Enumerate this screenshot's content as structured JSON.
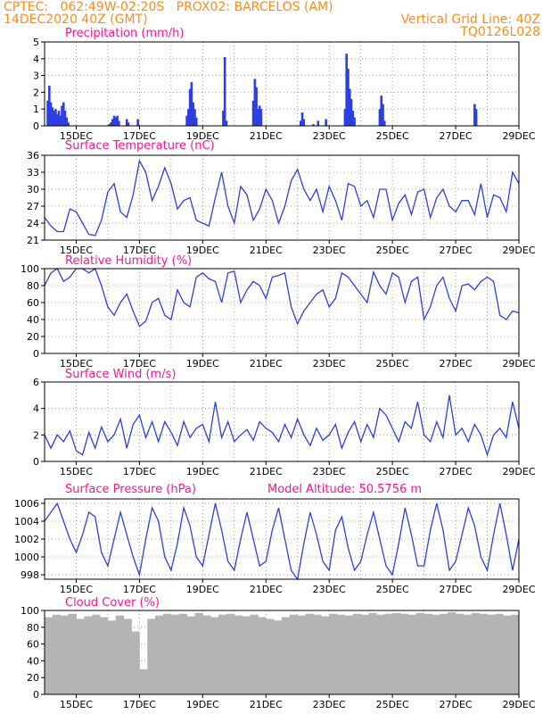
{
  "header": {
    "line1_left": "CPTEC:   062:49W-02:20S   PROX02: BARCELOS (AM)",
    "line2_left": "14DEC2020 40Z (GMT)",
    "line2_right": "Vertical Grid Line: 40Z",
    "line3_right": "TQ0126L028"
  },
  "colors": {
    "header": "#ff8c1a",
    "panel_title": "#ff1493",
    "line": "#2d3fe0",
    "bar": "#2d3fe0",
    "cloud": "#b4b4b4",
    "grid": "#8c8c8c"
  },
  "x_axis": {
    "start_day": 14,
    "end_day": 29,
    "tick_labels": [
      "15DEC",
      "17DEC",
      "19DEC",
      "21DEC",
      "23DEC",
      "25DEC",
      "27DEC",
      "29DEC"
    ],
    "tick_days": [
      15,
      17,
      19,
      21,
      23,
      25,
      27,
      29
    ],
    "vertical_grid_every_day": true
  },
  "chart_data": [
    {
      "type": "bar",
      "title": "Precipitation (mm/h)",
      "ylim": [
        0,
        5
      ],
      "yticks": [
        0,
        1,
        2,
        3,
        4,
        5
      ],
      "x_unit": "day of December 2020",
      "bars": [
        [
          14.1,
          1.5
        ],
        [
          14.15,
          2.4
        ],
        [
          14.2,
          1.4
        ],
        [
          14.25,
          1.1
        ],
        [
          14.3,
          0.9
        ],
        [
          14.35,
          1.0
        ],
        [
          14.4,
          0.7
        ],
        [
          14.45,
          0.9
        ],
        [
          14.5,
          0.6
        ],
        [
          14.55,
          1.2
        ],
        [
          14.6,
          1.4
        ],
        [
          14.65,
          0.9
        ],
        [
          14.7,
          0.5
        ],
        [
          14.75,
          0.2
        ],
        [
          16.05,
          0.1
        ],
        [
          16.1,
          0.2
        ],
        [
          16.15,
          0.4
        ],
        [
          16.2,
          0.6
        ],
        [
          16.25,
          0.5
        ],
        [
          16.3,
          0.6
        ],
        [
          16.35,
          0.3
        ],
        [
          16.6,
          0.4
        ],
        [
          16.65,
          0.2
        ],
        [
          16.95,
          0.4
        ],
        [
          18.5,
          0.6
        ],
        [
          18.55,
          1.0
        ],
        [
          18.6,
          2.2
        ],
        [
          18.65,
          2.6
        ],
        [
          18.7,
          1.4
        ],
        [
          18.75,
          1.0
        ],
        [
          18.8,
          0.5
        ],
        [
          19.65,
          0.9
        ],
        [
          19.7,
          4.1
        ],
        [
          19.75,
          0.3
        ],
        [
          20.6,
          1.5
        ],
        [
          20.65,
          2.8
        ],
        [
          20.7,
          2.3
        ],
        [
          20.75,
          1.0
        ],
        [
          20.8,
          1.2
        ],
        [
          20.85,
          1.0
        ],
        [
          22.1,
          0.3
        ],
        [
          22.15,
          0.8
        ],
        [
          22.2,
          0.4
        ],
        [
          22.5,
          0.1
        ],
        [
          22.65,
          0.3
        ],
        [
          22.9,
          0.4
        ],
        [
          23.5,
          1.0
        ],
        [
          23.55,
          4.3
        ],
        [
          23.6,
          3.4
        ],
        [
          23.65,
          2.2
        ],
        [
          23.7,
          1.6
        ],
        [
          23.75,
          0.9
        ],
        [
          23.8,
          0.5
        ],
        [
          24.6,
          1.0
        ],
        [
          24.65,
          1.8
        ],
        [
          24.7,
          1.3
        ],
        [
          24.75,
          0.3
        ],
        [
          27.6,
          1.3
        ],
        [
          27.65,
          1.0
        ]
      ]
    },
    {
      "type": "line",
      "title": "Surface Temperature (nC)",
      "ylim": [
        21,
        36
      ],
      "yticks": [
        21,
        24,
        27,
        30,
        33,
        36
      ],
      "x": [
        14.0,
        14.2,
        14.4,
        14.6,
        14.8,
        15.0,
        15.2,
        15.4,
        15.6,
        15.8,
        16.0,
        16.2,
        16.4,
        16.6,
        16.8,
        17.0,
        17.2,
        17.4,
        17.6,
        17.8,
        18.0,
        18.2,
        18.4,
        18.6,
        18.8,
        19.0,
        19.2,
        19.4,
        19.6,
        19.8,
        20.0,
        20.2,
        20.4,
        20.6,
        20.8,
        21.0,
        21.2,
        21.4,
        21.6,
        21.8,
        22.0,
        22.2,
        22.4,
        22.6,
        22.8,
        23.0,
        23.2,
        23.4,
        23.6,
        23.8,
        24.0,
        24.2,
        24.4,
        24.6,
        24.8,
        25.0,
        25.2,
        25.4,
        25.6,
        25.8,
        26.0,
        26.2,
        26.4,
        26.6,
        26.8,
        27.0,
        27.2,
        27.4,
        27.6,
        27.8,
        28.0,
        28.2,
        28.4,
        28.6,
        28.8,
        29.0
      ],
      "y": [
        25.0,
        23.5,
        22.5,
        22.5,
        26.5,
        26.0,
        24.0,
        22.0,
        21.8,
        24.5,
        29.5,
        31.0,
        26.0,
        25.0,
        29.0,
        35.0,
        33.0,
        28.0,
        30.5,
        33.8,
        31.0,
        26.5,
        28.0,
        28.5,
        24.5,
        24.0,
        23.5,
        28.5,
        33.0,
        27.0,
        24.0,
        30.5,
        29.0,
        24.5,
        26.5,
        30.0,
        28.0,
        24.0,
        27.0,
        31.5,
        33.5,
        30.0,
        28.0,
        30.0,
        26.0,
        30.5,
        28.0,
        24.5,
        31.0,
        30.5,
        27.0,
        28.0,
        25.0,
        30.0,
        30.0,
        24.5,
        27.5,
        29.0,
        25.5,
        29.5,
        30.0,
        25.0,
        28.5,
        30.0,
        27.0,
        26.0,
        28.0,
        28.0,
        25.5,
        31.0,
        25.0,
        29.0,
        28.5,
        26.0,
        33.0,
        31.0
      ]
    },
    {
      "type": "line",
      "title": "Relative Humidity (%)",
      "ylim": [
        0,
        100
      ],
      "yticks": [
        0,
        20,
        40,
        60,
        80,
        100
      ],
      "x": [
        14.0,
        14.2,
        14.4,
        14.6,
        14.8,
        15.0,
        15.2,
        15.4,
        15.6,
        15.8,
        16.0,
        16.2,
        16.4,
        16.6,
        16.8,
        17.0,
        17.2,
        17.4,
        17.6,
        17.8,
        18.0,
        18.2,
        18.4,
        18.6,
        18.8,
        19.0,
        19.2,
        19.4,
        19.6,
        19.8,
        20.0,
        20.2,
        20.4,
        20.6,
        20.8,
        21.0,
        21.2,
        21.4,
        21.6,
        21.8,
        22.0,
        22.2,
        22.4,
        22.6,
        22.8,
        23.0,
        23.2,
        23.4,
        23.6,
        23.8,
        24.0,
        24.2,
        24.4,
        24.6,
        24.8,
        25.0,
        25.2,
        25.4,
        25.6,
        25.8,
        26.0,
        26.2,
        26.4,
        26.6,
        26.8,
        27.0,
        27.2,
        27.4,
        27.6,
        27.8,
        28.0,
        28.2,
        28.4,
        28.6,
        28.8,
        29.0
      ],
      "y": [
        80,
        95,
        100,
        85,
        90,
        100,
        100,
        95,
        100,
        80,
        55,
        45,
        60,
        70,
        50,
        32,
        38,
        60,
        65,
        45,
        40,
        75,
        60,
        55,
        90,
        95,
        88,
        85,
        60,
        95,
        97,
        60,
        75,
        85,
        80,
        65,
        90,
        92,
        95,
        55,
        35,
        50,
        60,
        70,
        75,
        55,
        65,
        95,
        90,
        80,
        70,
        60,
        96,
        80,
        70,
        95,
        90,
        60,
        85,
        90,
        40,
        55,
        80,
        90,
        65,
        50,
        80,
        82,
        75,
        85,
        90,
        85,
        45,
        40,
        50,
        48
      ]
    },
    {
      "type": "line",
      "title": "Surface Wind (m/s)",
      "ylim": [
        0,
        6
      ],
      "yticks": [
        0,
        2,
        4,
        6
      ],
      "x": [
        14.0,
        14.2,
        14.4,
        14.6,
        14.8,
        15.0,
        15.2,
        15.4,
        15.6,
        15.8,
        16.0,
        16.2,
        16.4,
        16.6,
        16.8,
        17.0,
        17.2,
        17.4,
        17.6,
        17.8,
        18.0,
        18.2,
        18.4,
        18.6,
        18.8,
        19.0,
        19.2,
        19.4,
        19.6,
        19.8,
        20.0,
        20.2,
        20.4,
        20.6,
        20.8,
        21.0,
        21.2,
        21.4,
        21.6,
        21.8,
        22.0,
        22.2,
        22.4,
        22.6,
        22.8,
        23.0,
        23.2,
        23.4,
        23.6,
        23.8,
        24.0,
        24.2,
        24.4,
        24.6,
        24.8,
        25.0,
        25.2,
        25.4,
        25.6,
        25.8,
        26.0,
        26.2,
        26.4,
        26.6,
        26.8,
        27.0,
        27.2,
        27.4,
        27.6,
        27.8,
        28.0,
        28.2,
        28.4,
        28.6,
        28.8,
        29.0
      ],
      "y": [
        2.0,
        1.0,
        2.0,
        1.5,
        2.3,
        0.8,
        0.5,
        2.2,
        1.0,
        2.6,
        1.5,
        2.0,
        3.2,
        1.0,
        2.8,
        3.5,
        1.8,
        3.0,
        1.5,
        3.0,
        2.2,
        1.2,
        3.0,
        1.8,
        2.5,
        2.8,
        1.5,
        4.5,
        1.8,
        3.0,
        1.5,
        2.0,
        2.4,
        1.6,
        3.0,
        2.5,
        2.2,
        1.5,
        2.8,
        1.8,
        3.2,
        2.0,
        1.2,
        2.5,
        1.6,
        2.0,
        2.8,
        1.0,
        2.2,
        3.0,
        1.5,
        2.8,
        1.8,
        4.0,
        3.5,
        2.5,
        1.5,
        3.0,
        2.5,
        4.5,
        2.0,
        1.5,
        3.0,
        1.8,
        5.0,
        2.0,
        2.5,
        1.5,
        2.8,
        2.0,
        0.5,
        2.0,
        2.5,
        1.8,
        4.5,
        2.5
      ]
    },
    {
      "type": "line",
      "title": "Surface Pressure (hPa)",
      "subtitle": "Model Altitude: 50.5756 m",
      "ylim": [
        997.5,
        1006.5
      ],
      "yticks": [
        998,
        1000,
        1002,
        1004,
        1006
      ],
      "x": [
        14.0,
        14.2,
        14.4,
        14.6,
        14.8,
        15.0,
        15.2,
        15.4,
        15.6,
        15.8,
        16.0,
        16.2,
        16.4,
        16.6,
        16.8,
        17.0,
        17.2,
        17.4,
        17.6,
        17.8,
        18.0,
        18.2,
        18.4,
        18.6,
        18.8,
        19.0,
        19.2,
        19.4,
        19.6,
        19.8,
        20.0,
        20.2,
        20.4,
        20.6,
        20.8,
        21.0,
        21.2,
        21.4,
        21.6,
        21.8,
        22.0,
        22.2,
        22.4,
        22.6,
        22.8,
        23.0,
        23.2,
        23.4,
        23.6,
        23.8,
        24.0,
        24.2,
        24.4,
        24.6,
        24.8,
        25.0,
        25.2,
        25.4,
        25.6,
        25.8,
        26.0,
        26.2,
        26.4,
        26.6,
        26.8,
        27.0,
        27.2,
        27.4,
        27.6,
        27.8,
        28.0,
        28.2,
        28.4,
        28.6,
        28.8,
        29.0
      ],
      "y": [
        1004.0,
        1005.0,
        1006.0,
        1004.0,
        1002.0,
        1000.5,
        1002.5,
        1005.0,
        1004.5,
        1000.5,
        999.0,
        1002.0,
        1005.0,
        1002.5,
        1000.0,
        998.0,
        1002.0,
        1005.5,
        1004.0,
        1000.0,
        998.5,
        1001.5,
        1005.5,
        1003.5,
        1000.0,
        999.0,
        1002.5,
        1006.0,
        1003.0,
        999.5,
        998.5,
        1002.0,
        1005.0,
        1002.0,
        999.0,
        999.5,
        1003.0,
        1005.5,
        1002.0,
        998.5,
        997.5,
        1001.5,
        1005.0,
        1002.5,
        999.5,
        998.5,
        1003.0,
        1004.5,
        1001.0,
        998.5,
        999.5,
        1002.5,
        1005.0,
        1002.0,
        999.0,
        998.0,
        1001.5,
        1005.5,
        1002.5,
        999.0,
        999.0,
        1003.0,
        1006.0,
        1003.0,
        998.5,
        999.5,
        1002.5,
        1005.5,
        1003.5,
        1000.0,
        998.5,
        1002.5,
        1006.0,
        1002.5,
        998.5,
        1002.0
      ]
    },
    {
      "type": "bar",
      "title": "Cloud Cover (%)",
      "ylim": [
        0,
        100
      ],
      "yticks": [
        0,
        20,
        40,
        60,
        80,
        100
      ],
      "fill": "gray",
      "x": [
        14.0,
        14.25,
        14.5,
        14.75,
        15.0,
        15.25,
        15.5,
        15.75,
        16.0,
        16.25,
        16.5,
        16.75,
        17.0,
        17.25,
        17.5,
        17.75,
        18.0,
        18.25,
        18.5,
        18.75,
        19.0,
        19.25,
        19.5,
        19.75,
        20.0,
        20.25,
        20.5,
        20.75,
        21.0,
        21.25,
        21.5,
        21.75,
        22.0,
        22.25,
        22.5,
        22.75,
        23.0,
        23.25,
        23.5,
        23.75,
        24.0,
        24.25,
        24.5,
        24.75,
        25.0,
        25.25,
        25.5,
        25.75,
        26.0,
        26.25,
        26.5,
        26.75,
        27.0,
        27.25,
        27.5,
        27.75,
        28.0,
        28.25,
        28.5,
        28.75,
        29.0
      ],
      "y": [
        92,
        95,
        94,
        96,
        90,
        93,
        95,
        92,
        88,
        94,
        90,
        75,
        30,
        90,
        94,
        96,
        95,
        96,
        93,
        97,
        94,
        92,
        95,
        96,
        94,
        93,
        95,
        92,
        90,
        88,
        92,
        95,
        94,
        96,
        95,
        93,
        96,
        95,
        94,
        96,
        95,
        97,
        95,
        96,
        97,
        96,
        95,
        97,
        96,
        95,
        96,
        98,
        96,
        95,
        97,
        96,
        95,
        96,
        94,
        95,
        95
      ]
    }
  ]
}
